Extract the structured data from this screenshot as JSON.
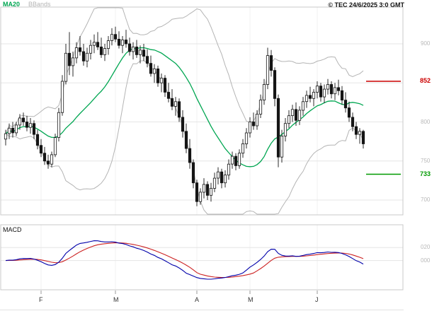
{
  "header": {
    "legend": [
      {
        "label": "MA20",
        "color": "#00a651"
      },
      {
        "label": "BBands",
        "color": "#b4b4b4"
      }
    ],
    "copyright": "© TEC 24/6/2025 3:0 GMT"
  },
  "chart_data": {
    "type": "candlestick+macd",
    "title": "",
    "x_unit": "daily candles, mid-January to 24 June 2025",
    "price_panel": {
      "y_ticks": [
        900,
        850,
        800,
        750,
        700
      ],
      "approx_range": [
        672,
        948
      ],
      "grid": true,
      "levels": [
        {
          "value": 852,
          "label": "852",
          "color": "#cc0000"
        },
        {
          "value": 733,
          "label": "733",
          "color": "#009900"
        }
      ],
      "indicators": {
        "ma_period": 20,
        "bb_period": 20,
        "bb_stddev": 2
      }
    },
    "macd_panel": {
      "label": "MACD",
      "ticks": [
        {
          "value": 20,
          "label": "020"
        },
        {
          "value": 0,
          "label": "000"
        }
      ],
      "macd_fast": 12,
      "macd_slow": 26,
      "macd_signal": 9,
      "macd_color": "#0000aa",
      "signal_color": "#cc2222"
    },
    "x_axis": {
      "month_ticks": [
        {
          "label": "F",
          "index": 10
        },
        {
          "label": "M",
          "index": 31
        },
        {
          "label": "A",
          "index": 54
        },
        {
          "label": "M",
          "index": 69
        },
        {
          "label": "J",
          "index": 88
        }
      ]
    },
    "candles_ohlc": [
      [
        778,
        790,
        770,
        785
      ],
      [
        785,
        798,
        778,
        792
      ],
      [
        792,
        800,
        780,
        786
      ],
      [
        786,
        800,
        782,
        796
      ],
      [
        796,
        810,
        790,
        805
      ],
      [
        805,
        812,
        795,
        800
      ],
      [
        800,
        808,
        788,
        793
      ],
      [
        793,
        805,
        785,
        798
      ],
      [
        798,
        802,
        778,
        784
      ],
      [
        784,
        790,
        765,
        770
      ],
      [
        770,
        778,
        755,
        760
      ],
      [
        760,
        768,
        745,
        750
      ],
      [
        750,
        758,
        740,
        746
      ],
      [
        746,
        762,
        742,
        758
      ],
      [
        758,
        785,
        755,
        780
      ],
      [
        780,
        818,
        775,
        812
      ],
      [
        812,
        860,
        808,
        852
      ],
      [
        852,
        900,
        848,
        888
      ],
      [
        888,
        915,
        860,
        872
      ],
      [
        872,
        890,
        858,
        882
      ],
      [
        882,
        902,
        875,
        895
      ],
      [
        895,
        910,
        885,
        890
      ],
      [
        890,
        900,
        872,
        878
      ],
      [
        878,
        895,
        870,
        888
      ],
      [
        888,
        905,
        880,
        898
      ],
      [
        898,
        912,
        888,
        902
      ],
      [
        902,
        915,
        892,
        896
      ],
      [
        896,
        908,
        882,
        886
      ],
      [
        886,
        900,
        878,
        894
      ],
      [
        894,
        910,
        886,
        904
      ],
      [
        904,
        920,
        898,
        912
      ],
      [
        912,
        922,
        902,
        906
      ],
      [
        906,
        916,
        894,
        898
      ],
      [
        898,
        910,
        888,
        905
      ],
      [
        905,
        918,
        895,
        900
      ],
      [
        900,
        908,
        885,
        890
      ],
      [
        890,
        902,
        880,
        896
      ],
      [
        896,
        905,
        882,
        886
      ],
      [
        886,
        898,
        875,
        892
      ],
      [
        892,
        900,
        878,
        884
      ],
      [
        884,
        893,
        870,
        875
      ],
      [
        875,
        885,
        858,
        862
      ],
      [
        862,
        874,
        850,
        868
      ],
      [
        868,
        872,
        845,
        850
      ],
      [
        850,
        862,
        838,
        856
      ],
      [
        856,
        860,
        832,
        838
      ],
      [
        838,
        850,
        825,
        830
      ],
      [
        830,
        842,
        815,
        820
      ],
      [
        820,
        832,
        808,
        826
      ],
      [
        826,
        830,
        800,
        806
      ],
      [
        806,
        815,
        780,
        788
      ],
      [
        788,
        798,
        760,
        766
      ],
      [
        766,
        778,
        740,
        748
      ],
      [
        748,
        752,
        715,
        722
      ],
      [
        722,
        726,
        692,
        698
      ],
      [
        698,
        715,
        694,
        710
      ],
      [
        710,
        728,
        702,
        720
      ],
      [
        720,
        724,
        700,
        706
      ],
      [
        706,
        722,
        698,
        715
      ],
      [
        715,
        735,
        710,
        728
      ],
      [
        728,
        742,
        720,
        736
      ],
      [
        736,
        740,
        715,
        722
      ],
      [
        722,
        738,
        716,
        732
      ],
      [
        732,
        752,
        726,
        746
      ],
      [
        746,
        762,
        740,
        756
      ],
      [
        756,
        760,
        738,
        744
      ],
      [
        744,
        765,
        740,
        760
      ],
      [
        760,
        778,
        754,
        772
      ],
      [
        772,
        792,
        766,
        786
      ],
      [
        786,
        806,
        780,
        800
      ],
      [
        800,
        812,
        790,
        795
      ],
      [
        795,
        815,
        790,
        810
      ],
      [
        810,
        835,
        805,
        828
      ],
      [
        828,
        855,
        822,
        848
      ],
      [
        848,
        895,
        842,
        885
      ],
      [
        885,
        892,
        858,
        866
      ],
      [
        866,
        870,
        820,
        830
      ],
      [
        830,
        835,
        742,
        755
      ],
      [
        755,
        790,
        748,
        782
      ],
      [
        782,
        805,
        775,
        798
      ],
      [
        798,
        815,
        792,
        808
      ],
      [
        808,
        822,
        800,
        816
      ],
      [
        816,
        825,
        795,
        802
      ],
      [
        802,
        820,
        796,
        815
      ],
      [
        815,
        832,
        808,
        826
      ],
      [
        826,
        840,
        818,
        834
      ],
      [
        834,
        845,
        825,
        830
      ],
      [
        830,
        842,
        820,
        838
      ],
      [
        838,
        852,
        830,
        846
      ],
      [
        846,
        850,
        826,
        832
      ],
      [
        832,
        848,
        824,
        842
      ],
      [
        842,
        855,
        835,
        848
      ],
      [
        848,
        852,
        830,
        836
      ],
      [
        836,
        850,
        828,
        844
      ],
      [
        844,
        854,
        834,
        840
      ],
      [
        840,
        846,
        822,
        828
      ],
      [
        828,
        838,
        812,
        818
      ],
      [
        818,
        826,
        800,
        806
      ],
      [
        806,
        812,
        788,
        794
      ],
      [
        794,
        800,
        778,
        784
      ],
      [
        784,
        792,
        772,
        788
      ],
      [
        788,
        790,
        766,
        772
      ]
    ]
  }
}
